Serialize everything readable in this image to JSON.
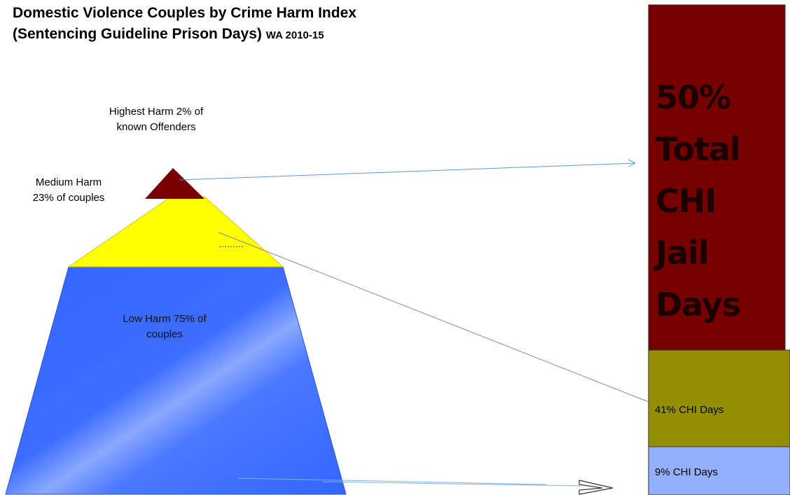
{
  "title": {
    "line1": "Domestic Violence Couples by Crime Harm Index",
    "line2": "(Sentencing Guideline Prison Days)",
    "line2_suffix": "WA 2010-15"
  },
  "pyramid": {
    "highest_label": [
      "Highest Harm 2% of",
      "known Offenders"
    ],
    "medium_label": [
      "Medium Harm",
      "23% of couples"
    ],
    "medium_dots": "………",
    "low_label": [
      "Low Harm 75% of",
      "couples"
    ]
  },
  "bar": {
    "top_text": [
      "50%",
      "Total",
      "CHI",
      "Jail",
      "Days"
    ],
    "middle_text": "41% CHI Days",
    "bottom_text": "9% CHI Days"
  },
  "colors": {
    "highest": "#7a0000",
    "medium": "#ffff00",
    "low": "#3a6bff",
    "bar_top": "#760000",
    "bar_middle": "#948f00",
    "bar_bottom": "#94afff",
    "arrow": "#5b9bd5"
  }
}
